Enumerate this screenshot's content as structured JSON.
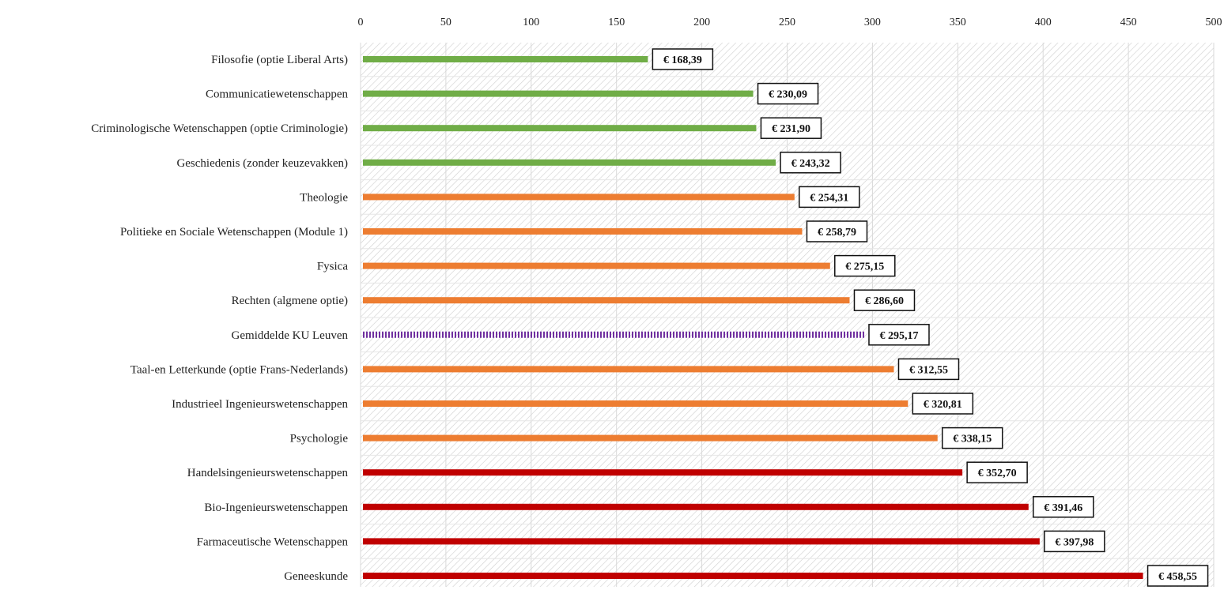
{
  "chart_data": {
    "type": "bar",
    "orientation": "horizontal",
    "title": "",
    "xlabel": "",
    "ylabel": "",
    "xlim": [
      0,
      500
    ],
    "x_ticks": [
      0,
      50,
      100,
      150,
      200,
      250,
      300,
      350,
      400,
      450,
      500
    ],
    "x_axis_position": "top",
    "grid": true,
    "categories": [
      "Filosofie (optie Liberal Arts)",
      "Communicatiewetenschappen",
      "Criminologische Wetenschappen (optie Criminologie)",
      "Geschiedenis (zonder keuzevakken)",
      "Theologie",
      "Politieke en Sociale Wetenschappen (Module 1)",
      "Fysica",
      "Rechten (algmene optie)",
      "Gemiddelde KU Leuven",
      "Taal-en Letterkunde (optie Frans-Nederlands)",
      "Industrieel Ingenieurswetenschappen",
      "Psychologie",
      "Handelsingenieurswetenschappen",
      "Bio-Ingenieurswetenschappen",
      "Farmaceutische Wetenschappen",
      "Geneeskunde"
    ],
    "values": [
      168.39,
      230.09,
      231.9,
      243.32,
      254.31,
      258.79,
      275.15,
      286.6,
      295.17,
      312.55,
      320.81,
      338.15,
      352.7,
      391.46,
      397.98,
      458.55
    ],
    "value_labels": [
      "€ 168,39",
      "€ 230,09",
      "€ 231,90",
      "€ 243,32",
      "€ 254,31",
      "€ 258,79",
      "€ 275,15",
      "€ 286,60",
      "€ 295,17",
      "€ 312,55",
      "€ 320,81",
      "€ 338,15",
      "€ 352,70",
      "€ 391,46",
      "€ 397,98",
      "€ 458,55"
    ],
    "bar_colors": [
      "#70ad47",
      "#70ad47",
      "#70ad47",
      "#70ad47",
      "#ed7d31",
      "#ed7d31",
      "#ed7d31",
      "#ed7d31",
      "#7030a0",
      "#ed7d31",
      "#ed7d31",
      "#ed7d31",
      "#c00000",
      "#c00000",
      "#c00000",
      "#c00000"
    ],
    "bar_styles": [
      "solid",
      "solid",
      "solid",
      "solid",
      "solid",
      "solid",
      "solid",
      "solid",
      "dotted",
      "solid",
      "solid",
      "solid",
      "solid",
      "solid",
      "solid",
      "solid"
    ]
  }
}
